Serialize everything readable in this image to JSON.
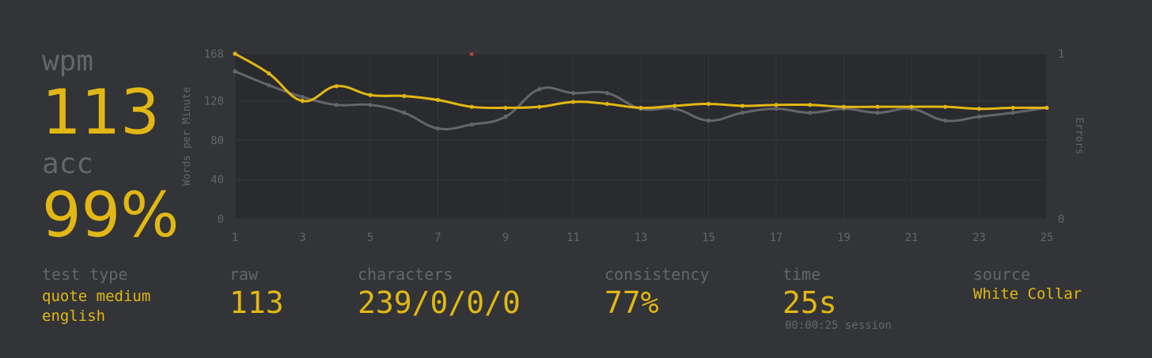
{
  "result": {
    "wpm_label": "wpm",
    "wpm_value": "113",
    "acc_label": "acc",
    "acc_value": "99%"
  },
  "stats": {
    "test_type_label": "test type",
    "test_type_line1": "quote medium",
    "test_type_line2": "english",
    "raw_label": "raw",
    "raw_value": "113",
    "characters_label": "characters",
    "characters_value": "239/0/0/0",
    "consistency_label": "consistency",
    "consistency_value": "77%",
    "time_label": "time",
    "time_value": "25s",
    "session_time": "00:00:25 session",
    "source_label": "source",
    "source_value": "White Collar"
  },
  "colors": {
    "background": "#323437",
    "plot_background": "#2a2b2e",
    "accent": "#e2b714",
    "raw_line": "#646669",
    "error": "#ca4754",
    "muted_text": "#646669"
  },
  "chart_data": {
    "type": "line",
    "ylabel": "Words per Minute",
    "y2label": "Errors",
    "x": [
      1,
      2,
      3,
      4,
      5,
      6,
      7,
      8,
      9,
      10,
      11,
      12,
      13,
      14,
      15,
      16,
      17,
      18,
      19,
      20,
      21,
      22,
      23,
      24,
      25
    ],
    "xticks": [
      "1",
      "3",
      "5",
      "7",
      "9",
      "11",
      "13",
      "15",
      "17",
      "19",
      "21",
      "23",
      "25"
    ],
    "yticks": [
      "0",
      "40",
      "80",
      "120",
      "168"
    ],
    "y2ticks": [
      "0",
      "1"
    ],
    "ylim": [
      0,
      168
    ],
    "y2lim": [
      0,
      1
    ],
    "grid": true,
    "series": [
      {
        "role": "wpm",
        "color": "#e2b714",
        "values": [
          168,
          148,
          120,
          135,
          126,
          125,
          121,
          114,
          113,
          114,
          119,
          117,
          113,
          115,
          117,
          115,
          116,
          116,
          114,
          114,
          114,
          114,
          112,
          113,
          113
        ]
      },
      {
        "role": "raw",
        "color": "#646669",
        "values": [
          150,
          136,
          124,
          116,
          116,
          108,
          92,
          96,
          104,
          132,
          128,
          128,
          112,
          112,
          100,
          108,
          112,
          108,
          112,
          108,
          112,
          100,
          104,
          108,
          113
        ]
      }
    ],
    "errors": [
      {
        "x": 8,
        "count": 1
      }
    ]
  }
}
